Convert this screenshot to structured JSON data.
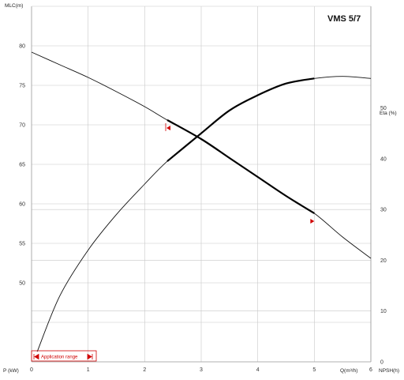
{
  "chart_data": {
    "type": "line",
    "title": "VMS 5/7",
    "x_axis": {
      "label": "Q(m³/h)",
      "range": [
        0,
        6
      ],
      "ticks": [
        "0",
        "1",
        "2",
        "3",
        "4",
        "5",
        "6"
      ]
    },
    "y_left_axis": {
      "label": "MLC(m)",
      "range": [
        40,
        85
      ],
      "ticks": [
        "50",
        "55",
        "60",
        "65",
        "70",
        "75",
        "80"
      ]
    },
    "y_right_axis": {
      "label": "Eta (%)",
      "range": [
        0,
        70
      ],
      "ticks": [
        "0",
        "10",
        "20",
        "30",
        "40",
        "50"
      ]
    },
    "bottom_left_label": "P (kW)",
    "bottom_right_label": "NPSH(h)",
    "series": [
      {
        "axis": "left",
        "bold_range": [
          2.4,
          5.0
        ],
        "points": [
          [
            0,
            79.2
          ],
          [
            0.5,
            77.6
          ],
          [
            1.0,
            76.0
          ],
          [
            1.5,
            74.2
          ],
          [
            2.0,
            72.3
          ],
          [
            2.4,
            70.6
          ],
          [
            3.0,
            68.2
          ],
          [
            3.5,
            65.8
          ],
          [
            4.0,
            63.4
          ],
          [
            4.5,
            61.0
          ],
          [
            5.0,
            58.8
          ],
          [
            5.5,
            55.8
          ],
          [
            6.0,
            53.1
          ]
        ]
      },
      {
        "axis": "right",
        "bold_range": [
          2.4,
          5.0
        ],
        "points": [
          [
            0.1,
            2
          ],
          [
            0.5,
            13
          ],
          [
            1.0,
            22
          ],
          [
            1.5,
            29
          ],
          [
            2.0,
            35
          ],
          [
            2.4,
            39.5
          ],
          [
            3.0,
            45
          ],
          [
            3.5,
            49.5
          ],
          [
            4.0,
            52.5
          ],
          [
            4.5,
            54.8
          ],
          [
            5.0,
            55.8
          ],
          [
            5.5,
            56.2
          ],
          [
            6.0,
            55.8
          ]
        ]
      }
    ],
    "markers": [
      {
        "x": 2.4,
        "y": 69.6,
        "axis": "left",
        "color": "#d00000"
      },
      {
        "x": 5.0,
        "y": 57.8,
        "axis": "left",
        "color": "#d00000"
      }
    ],
    "legend": {
      "label": "Application range",
      "color": "#d00000",
      "position": "bottom-left"
    },
    "grid": true
  }
}
